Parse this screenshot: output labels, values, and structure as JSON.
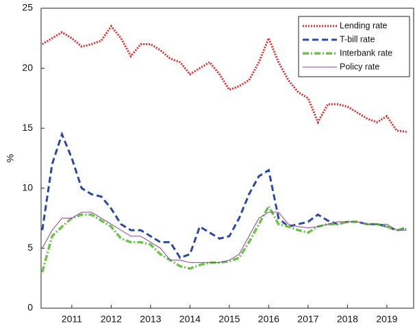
{
  "chart_data": {
    "type": "line",
    "ylabel": "%",
    "x": [
      2010.25,
      2010.5,
      2010.75,
      2011,
      2011.25,
      2011.5,
      2011.75,
      2012,
      2012.25,
      2012.5,
      2012.75,
      2013,
      2013.25,
      2013.5,
      2013.75,
      2014,
      2014.25,
      2014.5,
      2014.75,
      2015,
      2015.25,
      2015.5,
      2015.75,
      2016,
      2016.25,
      2016.5,
      2016.75,
      2017,
      2017.25,
      2017.5,
      2017.75,
      2018,
      2018.25,
      2018.5,
      2018.75,
      2019,
      2019.25,
      2019.5
    ],
    "xlim": [
      2010.22,
      2019.68
    ],
    "xticks": [
      2011,
      2012,
      2013,
      2014,
      2015,
      2016,
      2017,
      2018,
      2019
    ],
    "ylim": [
      0,
      25
    ],
    "yticks": [
      0,
      5,
      10,
      15,
      20,
      25
    ],
    "legend": "upper-right",
    "series": [
      {
        "name": "Lending rate",
        "color": "#e8262a",
        "linestyle": "dotted",
        "values": [
          22,
          22.5,
          23,
          22.5,
          21.8,
          22,
          22.3,
          23.5,
          22.5,
          21,
          22,
          22,
          21.5,
          20.8,
          20.5,
          19.5,
          20,
          20.5,
          19.5,
          18.2,
          18.5,
          19,
          20.5,
          22.5,
          20.5,
          19,
          18,
          17.5,
          15.5,
          17,
          17,
          16.8,
          16.3,
          15.8,
          15.5,
          16,
          14.8,
          14.7
        ]
      },
      {
        "name": "T-bill rate",
        "color": "#2a47a8",
        "linestyle": "dashed",
        "values": [
          6.5,
          12,
          14.5,
          12.5,
          10,
          9.5,
          9.3,
          8.3,
          7,
          6.5,
          6.5,
          6,
          5.5,
          5.5,
          4.2,
          4.5,
          6.8,
          6.3,
          5.8,
          6,
          7.5,
          9.5,
          11,
          11.5,
          7.5,
          6.8,
          7,
          7.2,
          7.8,
          7.3,
          7,
          7.2,
          7.2,
          7,
          7,
          6.8,
          6.5,
          6.7
        ]
      },
      {
        "name": "Interbank rate",
        "color": "#6cc24a",
        "linestyle": "dashdot",
        "values": [
          3,
          6,
          6.8,
          7.5,
          7.8,
          7.8,
          7.3,
          6.8,
          5.8,
          5.5,
          5.5,
          5.3,
          4.5,
          4,
          3.5,
          3.3,
          3.6,
          3.8,
          3.8,
          3.9,
          4.2,
          5.5,
          7,
          8.5,
          7,
          6.8,
          6.5,
          6.3,
          6.8,
          7,
          7,
          7.2,
          7.2,
          7,
          7,
          6.8,
          6.5,
          6.6
        ]
      },
      {
        "name": "Policy rate",
        "color": "#8a3d9c",
        "linestyle": "solid",
        "values": [
          5,
          6.5,
          7.5,
          7.5,
          8,
          8,
          7.5,
          7,
          6.5,
          6,
          6,
          5.5,
          5,
          4,
          4,
          3.8,
          3.8,
          3.8,
          3.8,
          4,
          4.5,
          6,
          7.5,
          8,
          8,
          7,
          6.8,
          6.7,
          6.8,
          7,
          7.2,
          7.2,
          7.2,
          7,
          7,
          7,
          6.5,
          6.5
        ]
      }
    ]
  }
}
